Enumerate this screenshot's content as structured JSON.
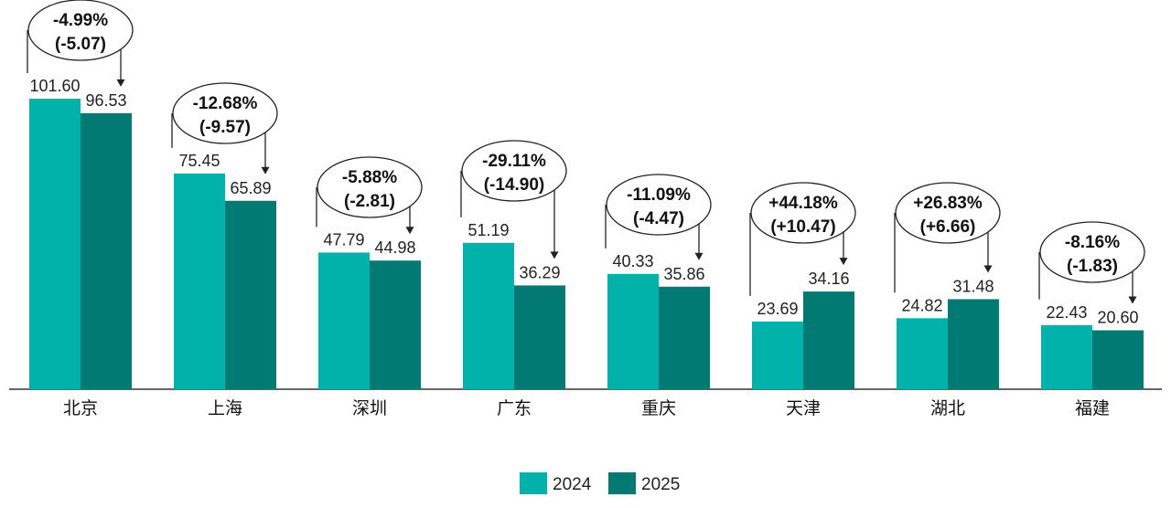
{
  "chart_data": {
    "type": "bar",
    "categories": [
      "北京",
      "上海",
      "深圳",
      "广东",
      "重庆",
      "天津",
      "湖北",
      "福建"
    ],
    "series": [
      {
        "name": "2024",
        "color": "#00b2a9",
        "values": [
          101.6,
          75.45,
          47.79,
          51.19,
          40.33,
          23.69,
          24.82,
          22.43
        ]
      },
      {
        "name": "2025",
        "color": "#007a72",
        "values": [
          96.53,
          65.89,
          44.98,
          36.29,
          35.86,
          34.16,
          31.48,
          20.6
        ]
      }
    ],
    "value_labels": [
      [
        "101.60",
        "75.45",
        "47.79",
        "51.19",
        "40.33",
        "23.69",
        "24.82",
        "22.43"
      ],
      [
        "96.53",
        "65.89",
        "44.98",
        "36.29",
        "35.86",
        "34.16",
        "31.48",
        "20.60"
      ]
    ],
    "annotations": [
      {
        "pct": "-4.99%",
        "abs": "(-5.07)"
      },
      {
        "pct": "-12.68%",
        "abs": "(-9.57)"
      },
      {
        "pct": "-5.88%",
        "abs": "(-2.81)"
      },
      {
        "pct": "-29.11%",
        "abs": "(-14.90)"
      },
      {
        "pct": "-11.09%",
        "abs": "(-4.47)"
      },
      {
        "pct": "+44.18%",
        "abs": "(+10.47)"
      },
      {
        "pct": "+26.83%",
        "abs": "(+6.66)"
      },
      {
        "pct": "-8.16%",
        "abs": "(-1.83)"
      }
    ],
    "legend_position": "bottom-center",
    "grid": false
  }
}
